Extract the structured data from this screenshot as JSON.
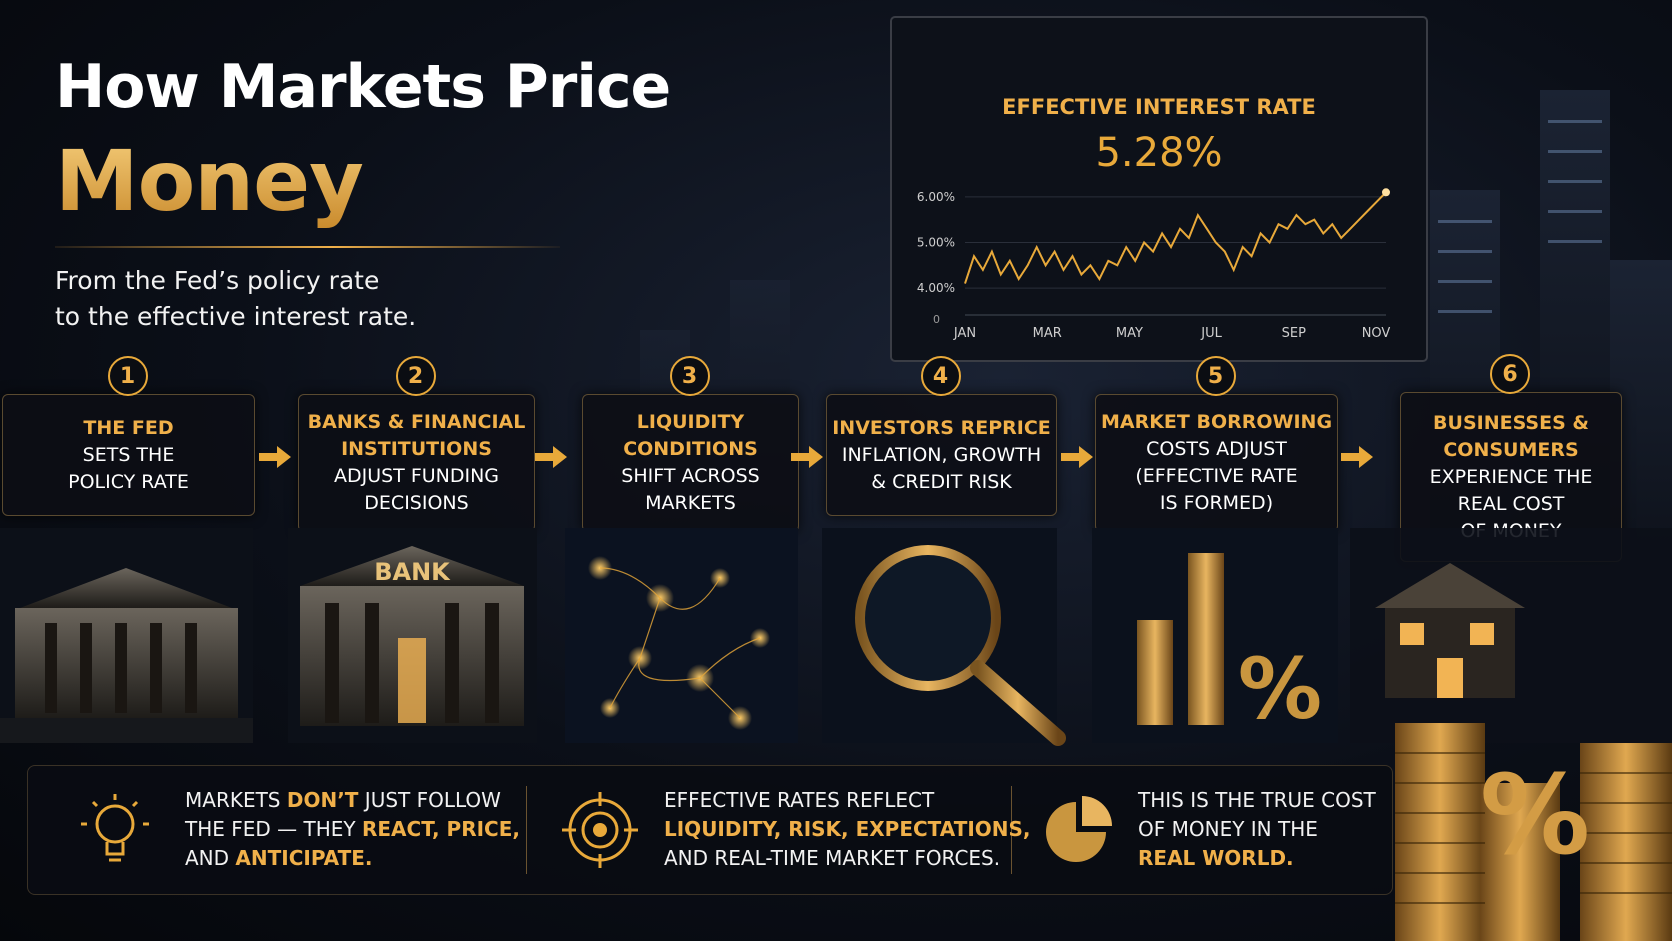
{
  "header": {
    "title_line1": "How Markets Price",
    "title_line2": "Money",
    "subtitle_line1": "From the Fed’s policy rate",
    "subtitle_line2": "to the effective interest rate."
  },
  "chart": {
    "type": "line",
    "title": "EFFECTIVE INTEREST RATE",
    "headline": "5.28%",
    "categories": [
      "JAN",
      "MAR",
      "MAY",
      "JUL",
      "SEP",
      "NOV"
    ],
    "values": [
      4.1,
      4.7,
      4.4,
      4.8,
      4.3,
      4.6,
      4.2,
      4.5,
      4.9,
      4.5,
      4.8,
      4.4,
      4.7,
      4.3,
      4.5,
      4.2,
      4.6,
      4.5,
      4.9,
      4.6,
      5.0,
      4.8,
      5.2,
      4.9,
      5.3,
      5.1,
      5.6,
      5.3,
      5.0,
      4.8,
      4.4,
      4.9,
      4.7,
      5.2,
      5.0,
      5.4,
      5.3,
      5.6,
      5.4,
      5.5,
      5.2,
      5.4,
      5.1,
      5.3,
      5.5,
      5.7,
      5.9,
      6.1
    ],
    "color": "#e8a93a",
    "ylim": [
      3.5,
      6.5
    ],
    "yticks": [
      {
        "value": 4,
        "label": "4.00%"
      },
      {
        "value": 5,
        "label": "5.00%"
      },
      {
        "value": 6,
        "label": "6.00%"
      }
    ],
    "y_origin_label": "0",
    "grid": true
  },
  "steps": [
    {
      "number": "1",
      "highlight": [
        "THE FED"
      ],
      "text": [
        "SETS THE",
        "POLICY RATE"
      ]
    },
    {
      "number": "2",
      "highlight": [
        "BANKS & FINANCIAL",
        "INSTITUTIONS"
      ],
      "text": [
        "ADJUST FUNDING",
        "DECISIONS"
      ]
    },
    {
      "number": "3",
      "highlight": [
        "LIQUIDITY",
        "CONDITIONS"
      ],
      "text": [
        "SHIFT ACROSS",
        "MARKETS"
      ]
    },
    {
      "number": "4",
      "highlight": [
        "INVESTORS REPRICE"
      ],
      "text": [
        "INFLATION, GROWTH",
        "& CREDIT RISK"
      ]
    },
    {
      "number": "5",
      "highlight": [
        "MARKET BORROWING"
      ],
      "text": [
        "COSTS ADJUST",
        "(EFFECTIVE RATE",
        "IS FORMED)"
      ]
    },
    {
      "number": "6",
      "highlight": [
        "BUSINESSES &",
        "CONSUMERS"
      ],
      "text": [
        "EXPERIENCE THE",
        "REAL COST",
        "OF MONEY"
      ]
    }
  ],
  "images": {
    "bank_sign": "BANK",
    "percent_sign": "%"
  },
  "notes": [
    [
      [
        {
          "t": "MARKETS ",
          "gold": false
        },
        {
          "t": "DON’T",
          "gold": true
        },
        {
          "t": " JUST FOLLOW",
          "gold": false
        }
      ],
      [
        {
          "t": "THE FED — THEY ",
          "gold": false
        },
        {
          "t": "REACT, PRICE,",
          "gold": true
        }
      ],
      [
        {
          "t": "AND ",
          "gold": false
        },
        {
          "t": "ANTICIPATE.",
          "gold": true
        }
      ]
    ],
    [
      [
        {
          "t": "EFFECTIVE RATES REFLECT",
          "gold": false
        }
      ],
      [
        {
          "t": "LIQUIDITY, RISK, EXPECTATIONS,",
          "gold": true
        }
      ],
      [
        {
          "t": "AND REAL-TIME MARKET FORCES.",
          "gold": false
        }
      ]
    ],
    [
      [
        {
          "t": "THIS IS THE TRUE COST",
          "gold": false
        }
      ],
      [
        {
          "t": "OF MONEY IN THE",
          "gold": false
        }
      ],
      [
        {
          "t": "REAL WORLD.",
          "gold": true
        }
      ]
    ]
  ]
}
